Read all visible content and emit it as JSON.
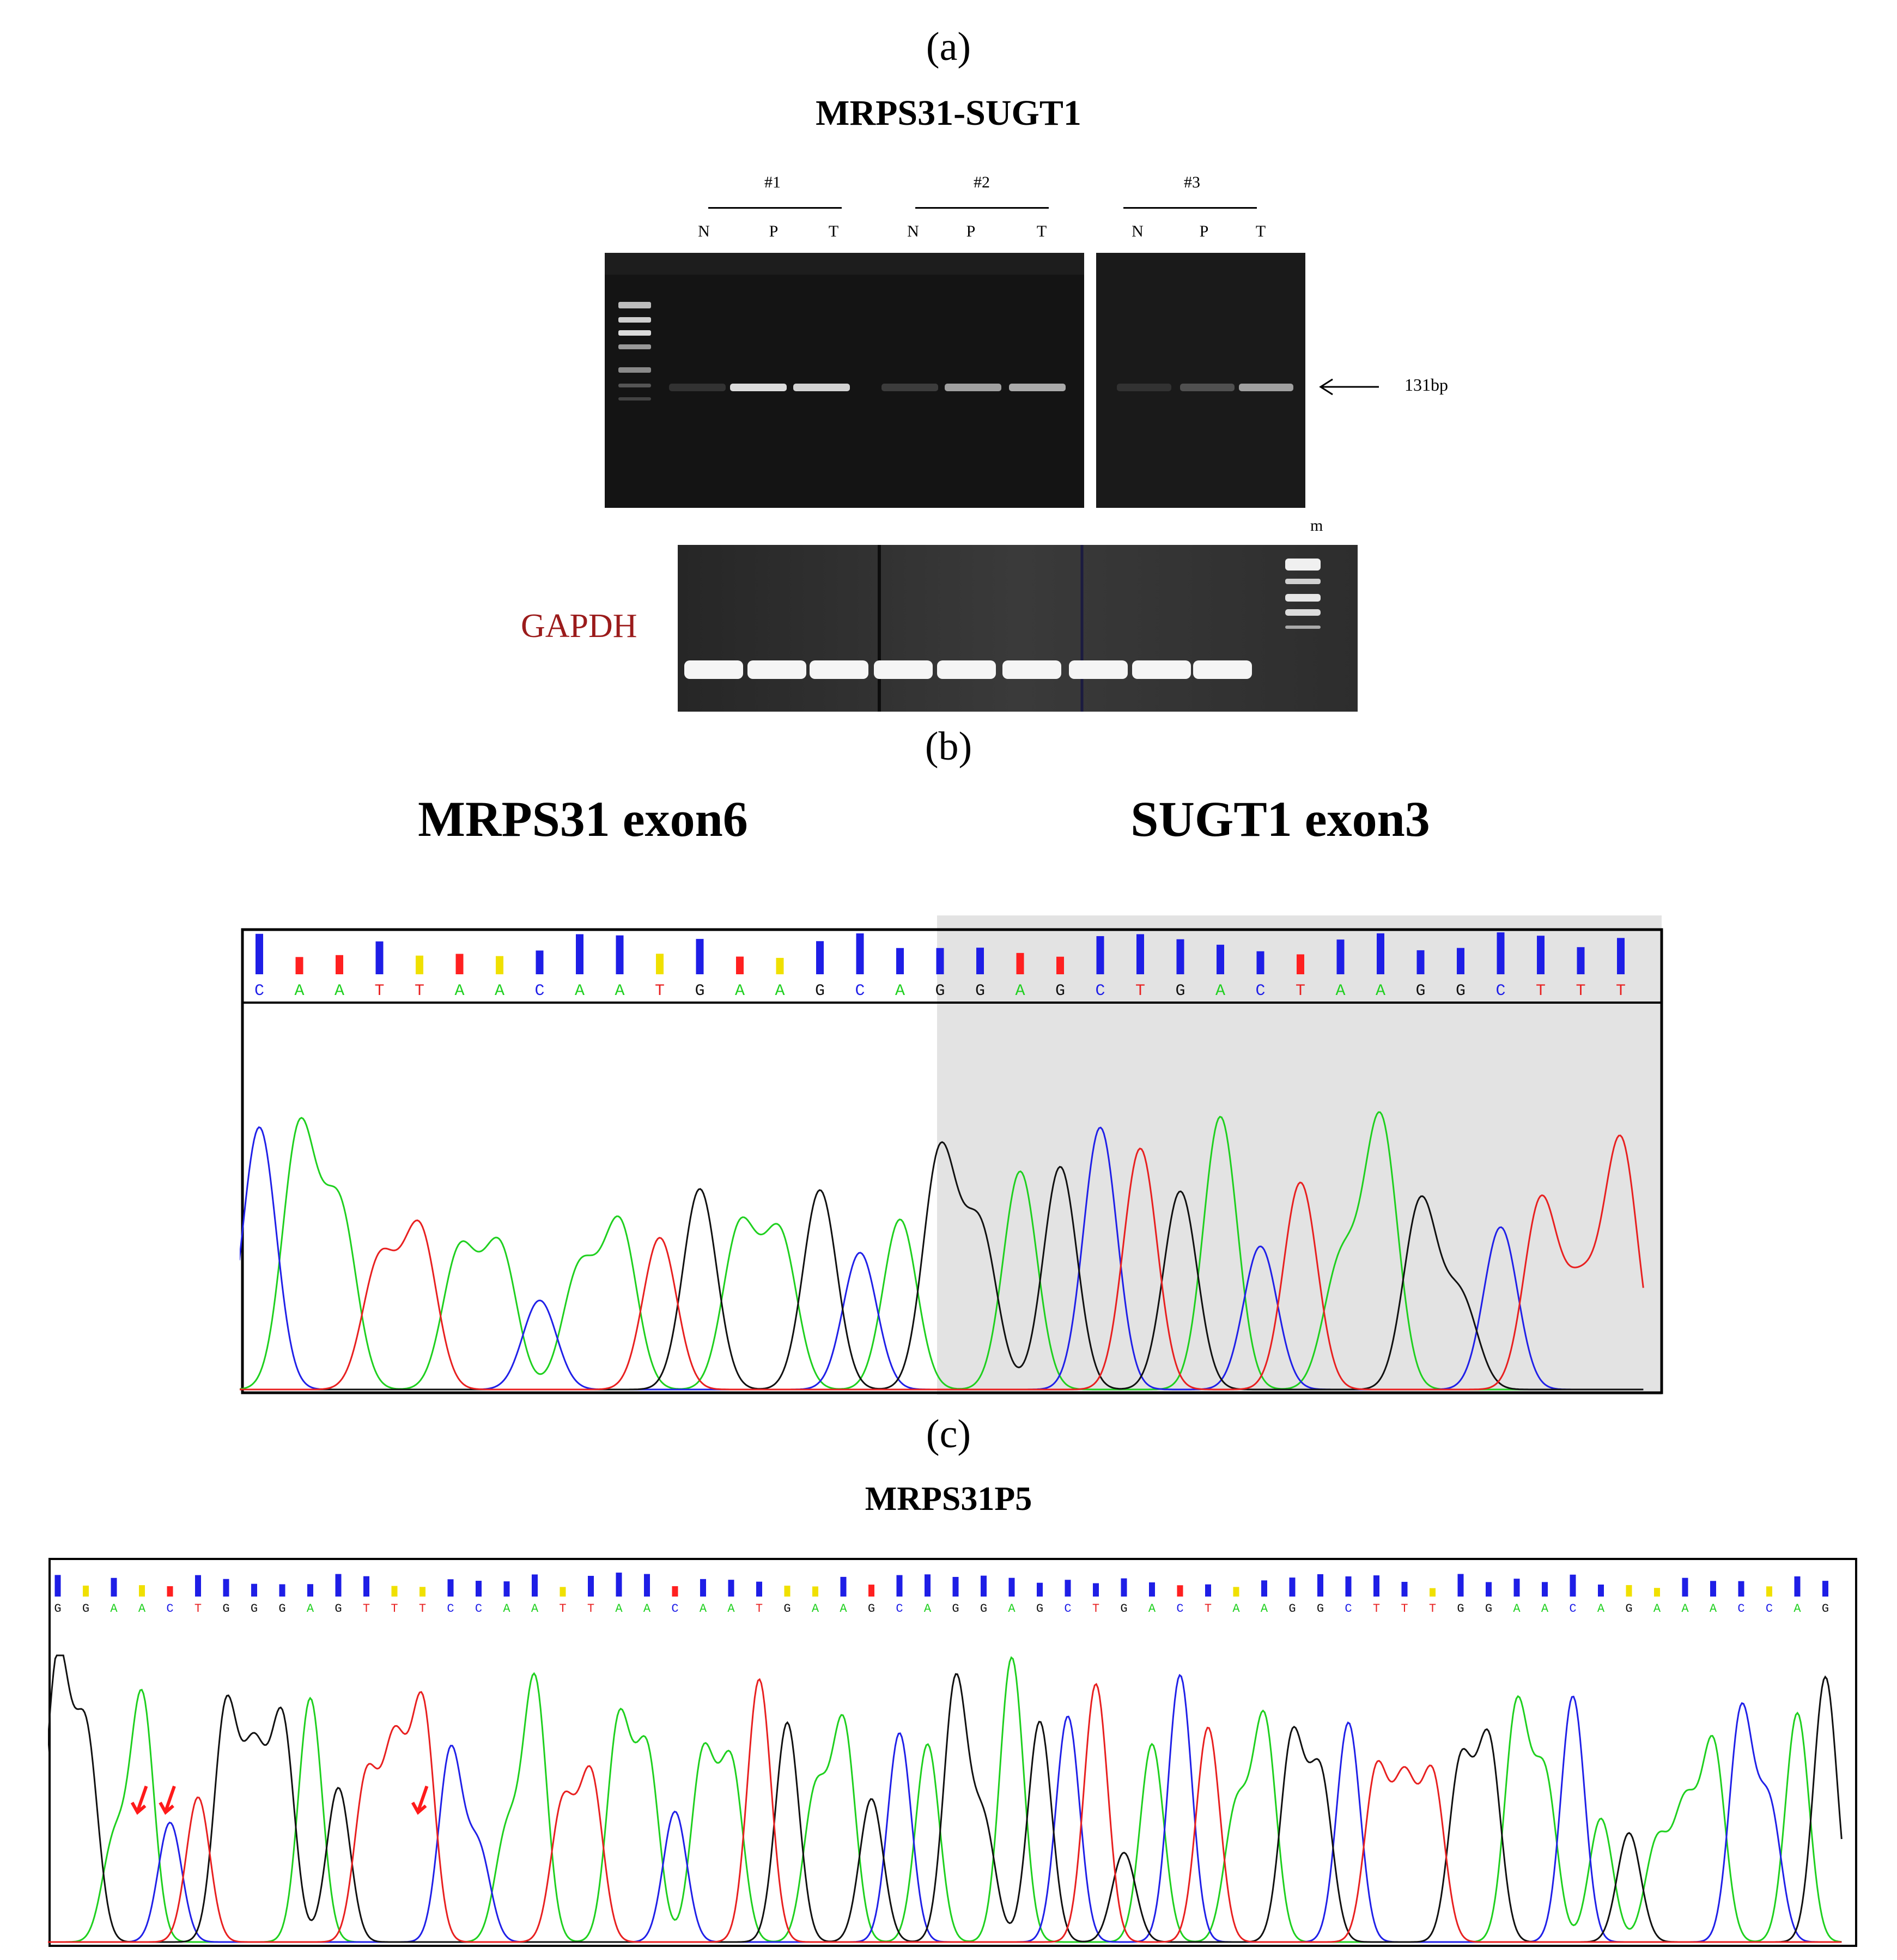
{
  "panel_a": {
    "letter": "(a)",
    "title": "MRPS31-SUGT1",
    "samples": [
      "#1",
      "#2",
      "#3"
    ],
    "lanes": [
      "N",
      "P",
      "T"
    ],
    "band_label": "131bp",
    "marker_label": "m",
    "control_label": "GAPDH",
    "band_intensity": {
      "#1": [
        0.05,
        0.9,
        0.85
      ],
      "#2": [
        0.1,
        0.6,
        0.65
      ],
      "#3": [
        0.05,
        0.2,
        0.6
      ]
    }
  },
  "panel_b": {
    "letter": "(b)",
    "left_label": "MRPS31 exon6",
    "right_label": "SUGT1 exon3",
    "sequence": [
      "C",
      "A",
      "A",
      "T",
      "T",
      "A",
      "A",
      "C",
      "A",
      "A",
      "T",
      "G",
      "A",
      "A",
      "G",
      "C",
      "A",
      "G",
      "G",
      "A",
      "G",
      "C",
      "T",
      "G",
      "A",
      "C",
      "T",
      "A",
      "A",
      "G",
      "G",
      "C",
      "T",
      "T",
      "T"
    ],
    "junction_index": 18
  },
  "panel_c": {
    "letter": "(c)",
    "title": "MRPS31P5",
    "sequence": [
      "G",
      "G",
      "A",
      "A",
      "C",
      "T",
      "G",
      "G",
      "G",
      "A",
      "G",
      "T",
      "T",
      "T",
      "C",
      "C",
      "A",
      "A",
      "T",
      "T",
      "A",
      "A",
      "C",
      "A",
      "A",
      "T",
      "G",
      "A",
      "A",
      "G",
      "C",
      "A",
      "G",
      "G",
      "A",
      "G",
      "C",
      "T",
      "G",
      "A",
      "C",
      "T",
      "A",
      "A",
      "G",
      "G",
      "C",
      "T",
      "T",
      "T",
      "G",
      "G",
      "A",
      "A",
      "C",
      "A",
      "G",
      "A",
      "A",
      "A",
      "C",
      "C",
      "A",
      "G"
    ],
    "arrow_positions": [
      3,
      4,
      13
    ]
  },
  "colors": {
    "A": "#1fd01f",
    "C": "#2020e8",
    "G": "#111111",
    "T": "#e82020",
    "arrow": "#ff1a1a",
    "gapdh_label": "#9b1b1b",
    "junction_shade": "#e3e3e3"
  }
}
